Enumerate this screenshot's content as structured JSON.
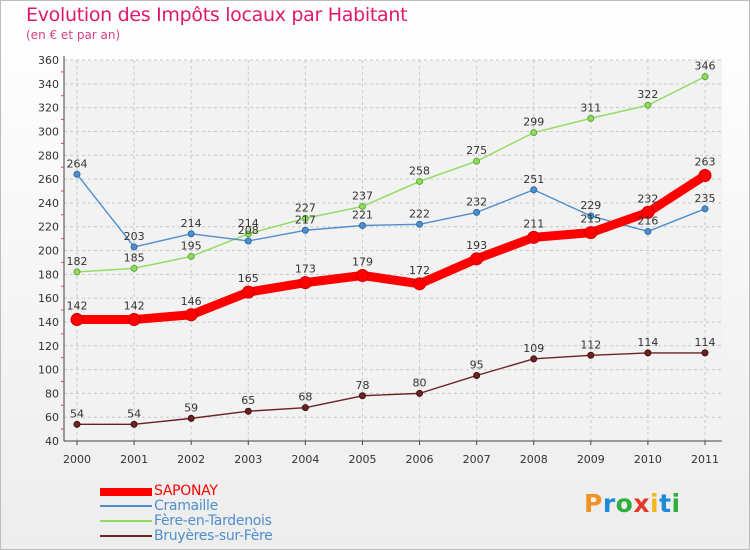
{
  "chart_data": {
    "type": "line",
    "title": "Evolution des Impôts locaux par Habitant",
    "subtitle": "(en € et par an)",
    "xlabel": "",
    "ylabel": "",
    "ylim": [
      40,
      360
    ],
    "yticks": [
      40,
      60,
      80,
      100,
      120,
      140,
      160,
      180,
      200,
      220,
      240,
      260,
      280,
      300,
      320,
      340,
      360
    ],
    "categories": [
      "2000",
      "2001",
      "2002",
      "2003",
      "2004",
      "2005",
      "2006",
      "2007",
      "2008",
      "2009",
      "2010",
      "2011"
    ],
    "series": [
      {
        "name": "SAPONAY",
        "color": "#ff0000",
        "values": [
          142,
          142,
          146,
          165,
          173,
          179,
          172,
          193,
          211,
          215,
          232,
          263
        ]
      },
      {
        "name": "Cramaille",
        "color": "#4f8fcc",
        "values": [
          264,
          203,
          214,
          208,
          217,
          221,
          222,
          232,
          251,
          229,
          216,
          235
        ]
      },
      {
        "name": "Fère-en-Tardenois",
        "color": "#8fdc5f",
        "values": [
          182,
          185,
          195,
          214,
          227,
          237,
          258,
          275,
          299,
          311,
          322,
          346
        ]
      },
      {
        "name": "Bruyères-sur-Fère",
        "color": "#6e2222",
        "values": [
          54,
          54,
          59,
          65,
          68,
          78,
          80,
          95,
          109,
          112,
          114,
          114
        ]
      }
    ],
    "grid": true,
    "legend": "bottom-left"
  },
  "logo": {
    "letters": [
      "P",
      "r",
      "o",
      "x",
      "i",
      "t",
      "i"
    ],
    "colors": [
      "#f29222",
      "#1f8ad6",
      "#2fae3e",
      "#e23a2a",
      "#f2b822",
      "#1f8ad6",
      "#2fae3e"
    ]
  }
}
